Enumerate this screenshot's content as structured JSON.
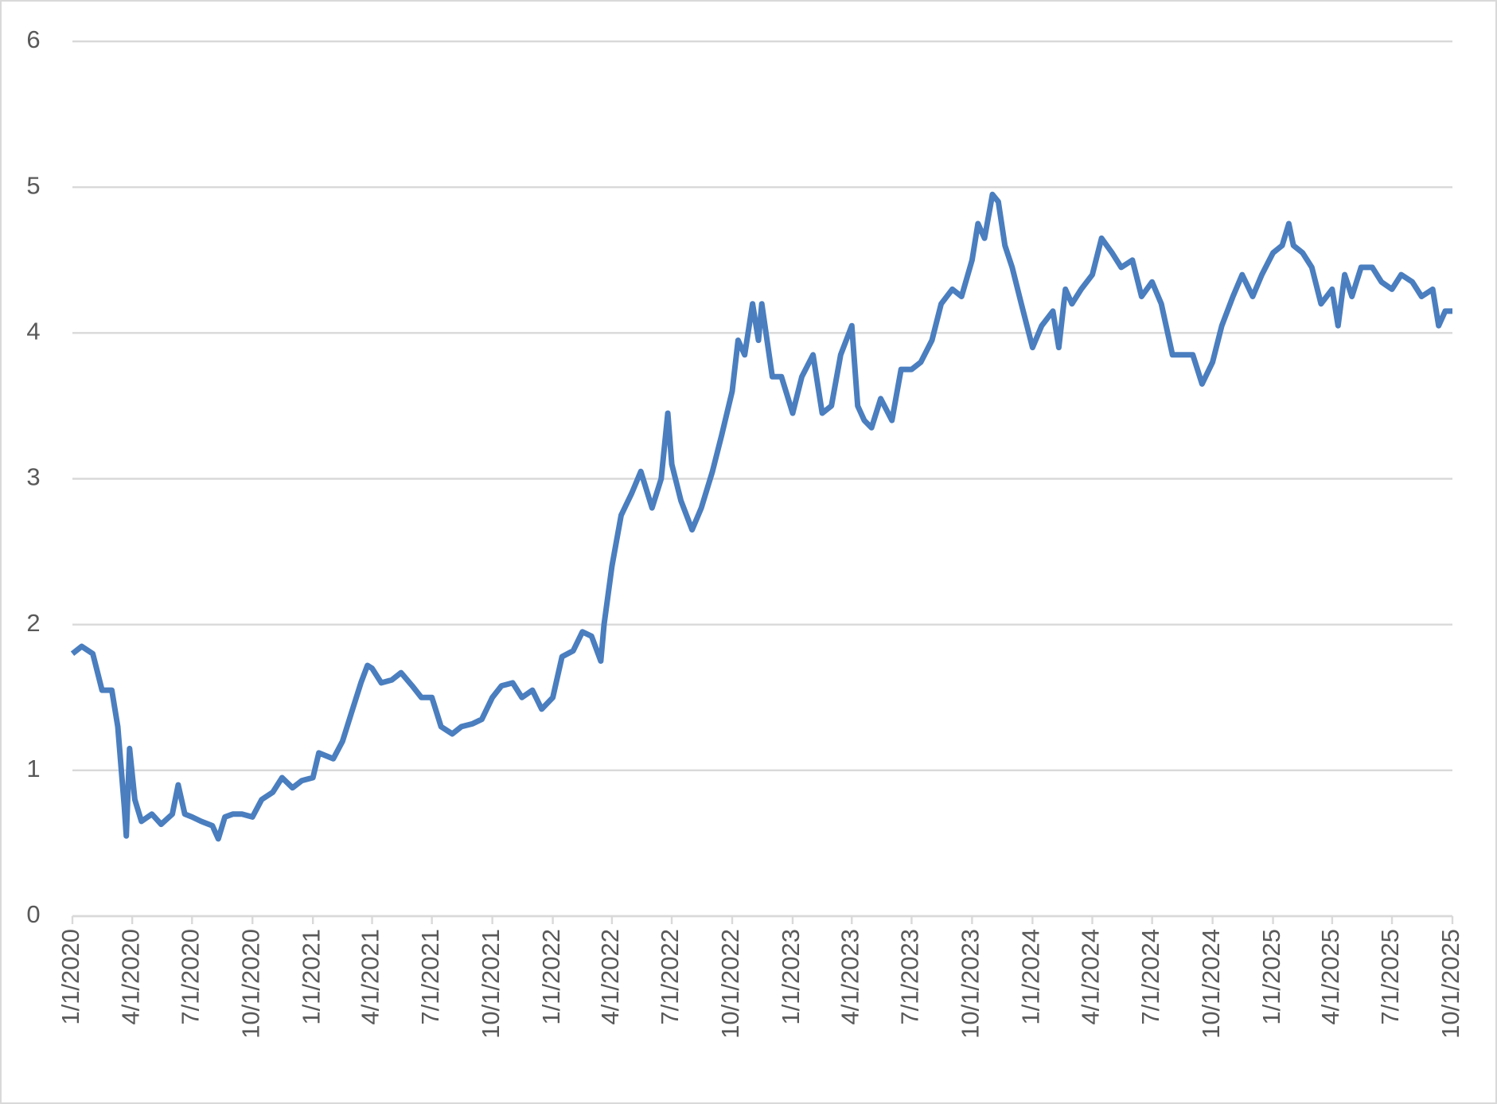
{
  "chart_data": {
    "type": "line",
    "x": [
      "1/1/2020",
      "1/15/2020",
      "2/1/2020",
      "2/15/2020",
      "3/1/2020",
      "3/10/2020",
      "3/20/2020",
      "3/23/2020",
      "3/28/2020",
      "4/5/2020",
      "4/15/2020",
      "5/1/2020",
      "5/15/2020",
      "6/1/2020",
      "6/10/2020",
      "6/20/2020",
      "7/1/2020",
      "7/15/2020",
      "8/1/2020",
      "8/10/2020",
      "8/20/2020",
      "9/1/2020",
      "9/15/2020",
      "10/1/2020",
      "10/15/2020",
      "11/1/2020",
      "11/15/2020",
      "12/1/2020",
      "12/15/2020",
      "1/1/2021",
      "1/10/2021",
      "2/1/2021",
      "2/15/2021",
      "3/1/2021",
      "3/15/2021",
      "3/25/2021",
      "4/1/2021",
      "4/15/2021",
      "5/1/2021",
      "5/15/2021",
      "6/1/2021",
      "6/15/2021",
      "7/1/2021",
      "7/15/2021",
      "8/1/2021",
      "8/15/2021",
      "9/1/2021",
      "9/15/2021",
      "10/1/2021",
      "10/15/2021",
      "11/1/2021",
      "11/15/2021",
      "12/1/2021",
      "12/15/2021",
      "1/1/2022",
      "1/15/2022",
      "2/1/2022",
      "2/15/2022",
      "3/1/2022",
      "3/15/2022",
      "3/20/2022",
      "4/1/2022",
      "4/15/2022",
      "5/1/2022",
      "5/15/2022",
      "6/1/2022",
      "6/15/2022",
      "6/25/2022",
      "7/1/2022",
      "7/15/2022",
      "8/1/2022",
      "8/15/2022",
      "9/1/2022",
      "9/15/2022",
      "10/1/2022",
      "10/10/2022",
      "10/20/2022",
      "11/1/2022",
      "11/10/2022",
      "11/15/2022",
      "12/1/2022",
      "12/15/2022",
      "1/1/2023",
      "1/15/2023",
      "2/1/2023",
      "2/15/2023",
      "3/1/2023",
      "3/15/2023",
      "4/1/2023",
      "4/10/2023",
      "4/20/2023",
      "5/1/2023",
      "5/15/2023",
      "6/1/2023",
      "6/15/2023",
      "7/1/2023",
      "7/15/2023",
      "8/1/2023",
      "8/15/2023",
      "9/1/2023",
      "9/15/2023",
      "10/1/2023",
      "10/10/2023",
      "10/20/2023",
      "11/1/2023",
      "11/10/2023",
      "11/20/2023",
      "12/1/2023",
      "12/15/2023",
      "1/1/2024",
      "1/15/2024",
      "2/1/2024",
      "2/10/2024",
      "2/20/2024",
      "3/1/2024",
      "3/15/2024",
      "4/1/2024",
      "4/15/2024",
      "5/1/2024",
      "5/15/2024",
      "6/1/2024",
      "6/15/2024",
      "7/1/2024",
      "7/15/2024",
      "8/1/2024",
      "8/15/2024",
      "9/1/2024",
      "9/15/2024",
      "10/1/2024",
      "10/15/2024",
      "11/1/2024",
      "11/15/2024",
      "12/1/2024",
      "12/15/2024",
      "1/1/2025",
      "1/15/2025",
      "1/25/2025",
      "2/1/2025",
      "2/15/2025",
      "3/1/2025",
      "3/15/2025",
      "4/1/2025",
      "4/10/2025",
      "4/20/2025",
      "5/1/2025",
      "5/15/2025",
      "6/1/2025",
      "6/15/2025",
      "7/1/2025",
      "7/15/2025",
      "8/1/2025",
      "8/15/2025",
      "9/1/2025",
      "9/10/2025",
      "9/20/2025",
      "10/1/2025"
    ],
    "series": [
      {
        "color": "#4a7ebf",
        "values": [
          1.8,
          1.85,
          1.8,
          1.55,
          1.55,
          1.3,
          0.75,
          0.55,
          1.15,
          0.8,
          0.65,
          0.7,
          0.63,
          0.7,
          0.9,
          0.7,
          0.68,
          0.65,
          0.62,
          0.53,
          0.68,
          0.7,
          0.7,
          0.68,
          0.8,
          0.85,
          0.95,
          0.88,
          0.93,
          0.95,
          1.12,
          1.08,
          1.2,
          1.4,
          1.6,
          1.72,
          1.7,
          1.6,
          1.62,
          1.67,
          1.58,
          1.5,
          1.5,
          1.3,
          1.25,
          1.3,
          1.32,
          1.35,
          1.5,
          1.58,
          1.6,
          1.5,
          1.55,
          1.42,
          1.5,
          1.78,
          1.82,
          1.95,
          1.92,
          1.75,
          2.0,
          2.4,
          2.75,
          2.9,
          3.05,
          2.8,
          3.0,
          3.45,
          3.1,
          2.85,
          2.65,
          2.8,
          3.05,
          3.3,
          3.6,
          3.95,
          3.85,
          4.2,
          3.95,
          4.2,
          3.7,
          3.7,
          3.45,
          3.7,
          3.85,
          3.45,
          3.5,
          3.85,
          4.05,
          3.5,
          3.4,
          3.35,
          3.55,
          3.4,
          3.75,
          3.75,
          3.8,
          3.95,
          4.2,
          4.3,
          4.25,
          4.5,
          4.75,
          4.65,
          4.95,
          4.9,
          4.6,
          4.45,
          4.2,
          3.9,
          4.05,
          4.15,
          3.9,
          4.3,
          4.2,
          4.3,
          4.4,
          4.65,
          4.55,
          4.45,
          4.5,
          4.25,
          4.35,
          4.2,
          3.85,
          3.85,
          3.85,
          3.65,
          3.8,
          4.05,
          4.25,
          4.4,
          4.25,
          4.4,
          4.55,
          4.6,
          4.75,
          4.6,
          4.55,
          4.45,
          4.2,
          4.3,
          4.05,
          4.4,
          4.25,
          4.45,
          4.45,
          4.35,
          4.3,
          4.4,
          4.35,
          4.25,
          4.3,
          4.05,
          4.15,
          4.15
        ]
      }
    ],
    "xlim": [
      "1/1/2020",
      "10/1/2025"
    ],
    "xticks": [
      "1/1/2020",
      "4/1/2020",
      "7/1/2020",
      "10/1/2020",
      "1/1/2021",
      "4/1/2021",
      "7/1/2021",
      "10/1/2021",
      "1/1/2022",
      "4/1/2022",
      "7/1/2022",
      "10/1/2022",
      "1/1/2023",
      "4/1/2023",
      "7/1/2023",
      "10/1/2023",
      "1/1/2024",
      "4/1/2024",
      "7/1/2024",
      "10/1/2024",
      "1/1/2025",
      "4/1/2025",
      "7/1/2025",
      "10/1/2025"
    ],
    "ylim": [
      0,
      6
    ],
    "yticks": [
      0,
      1,
      2,
      3,
      4,
      5,
      6
    ],
    "grid": true
  }
}
